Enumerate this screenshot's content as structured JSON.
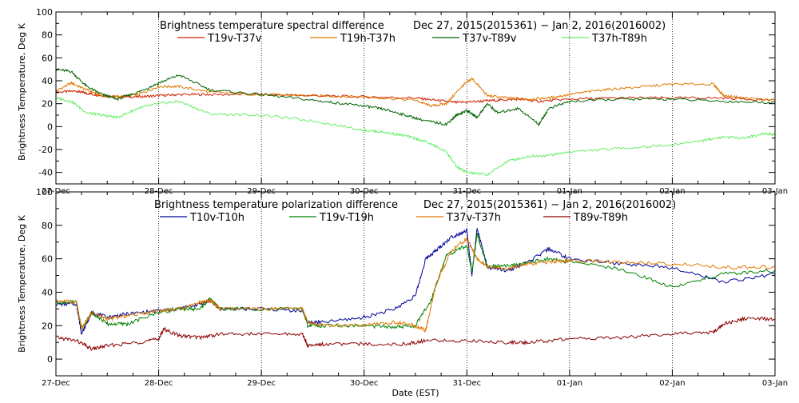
{
  "chart_data": [
    {
      "type": "line",
      "title": "Brightness temperature spectral difference",
      "date_range": "Dec 27, 2015(2015361) − Jan  2, 2016(2016002)",
      "ylabel": "Brightness Temperature, Deg K",
      "xlabel": "",
      "ylim": [
        -50,
        100
      ],
      "yticks": [
        -40,
        -20,
        0,
        20,
        40,
        60,
        80,
        100
      ],
      "xlim": [
        0,
        7
      ],
      "xtick_labels": [
        "27-Dec",
        "28-Dec",
        "29-Dec",
        "30-Dec",
        "31-Dec",
        "01-Jan",
        "02-Jan",
        "03-Jan"
      ],
      "grid": "dotted vertical lines at day boundaries",
      "legend_placement": "top",
      "series": [
        {
          "name": "T19v-T37v",
          "color": "#cc2200",
          "x": [
            0,
            0.2,
            0.3,
            0.45,
            0.6,
            0.8,
            1.0,
            1.2,
            1.5,
            2.0,
            2.5,
            3.0,
            3.5,
            3.7,
            3.9,
            4.1,
            4.3,
            4.5,
            4.7,
            5.0,
            5.5,
            6.0,
            6.5,
            7.0
          ],
          "y": [
            30,
            31,
            29,
            27,
            26,
            26,
            27,
            28,
            28,
            28,
            27,
            26,
            25,
            23,
            21,
            22,
            23,
            24,
            22,
            24,
            25,
            25,
            25,
            23
          ]
        },
        {
          "name": "T19h-T37h",
          "color": "#e07800",
          "x": [
            0,
            0.15,
            0.3,
            0.45,
            0.6,
            0.8,
            1.0,
            1.2,
            1.5,
            2.0,
            2.5,
            3.0,
            3.5,
            3.65,
            3.8,
            3.95,
            4.05,
            4.2,
            4.4,
            4.6,
            4.8,
            5.0,
            5.3,
            5.6,
            6.0,
            6.4,
            6.5,
            6.7,
            7.0
          ],
          "y": [
            31,
            38,
            32,
            27,
            26,
            28,
            35,
            35,
            30,
            28,
            27,
            26,
            23,
            18,
            20,
            35,
            42,
            27,
            25,
            24,
            25,
            28,
            32,
            34,
            37,
            37,
            27,
            25,
            23
          ]
        },
        {
          "name": "T37v-T89v",
          "color": "#006400",
          "x": [
            0,
            0.15,
            0.3,
            0.45,
            0.6,
            0.8,
            1.0,
            1.2,
            1.5,
            2.0,
            2.5,
            2.8,
            3.0,
            3.2,
            3.4,
            3.6,
            3.8,
            3.9,
            4.0,
            4.1,
            4.2,
            4.3,
            4.5,
            4.7,
            4.8,
            5.0,
            5.5,
            6.0,
            6.5,
            7.0
          ],
          "y": [
            50,
            48,
            35,
            28,
            24,
            30,
            38,
            45,
            32,
            28,
            23,
            20,
            18,
            15,
            10,
            5,
            2,
            10,
            14,
            8,
            20,
            12,
            16,
            2,
            16,
            22,
            24,
            24,
            22,
            21
          ]
        },
        {
          "name": "T37h-T89h",
          "color": "#66ee66",
          "x": [
            0,
            0.15,
            0.3,
            0.45,
            0.6,
            0.8,
            1.0,
            1.2,
            1.5,
            2.0,
            2.5,
            3.0,
            3.2,
            3.4,
            3.6,
            3.8,
            3.9,
            4.0,
            4.2,
            4.4,
            4.6,
            4.8,
            5.0,
            5.5,
            6.0,
            6.3,
            6.5,
            6.7,
            6.9,
            7.0
          ],
          "y": [
            25,
            22,
            12,
            10,
            8,
            16,
            20,
            22,
            11,
            10,
            5,
            -3,
            -5,
            -8,
            -13,
            -22,
            -35,
            -40,
            -42,
            -30,
            -26,
            -25,
            -22,
            -19,
            -16,
            -12,
            -9,
            -10,
            -6,
            -7
          ]
        }
      ]
    },
    {
      "type": "line",
      "title": "Brightness temperature polarization difference",
      "date_range": "Dec 27, 2015(2015361) − Jan  2, 2016(2016002)",
      "ylabel": "Brightness Temperature, Deg K",
      "xlabel": "Date (EST)",
      "ylim": [
        -10,
        100
      ],
      "yticks": [
        0,
        20,
        40,
        60,
        80,
        100
      ],
      "xlim": [
        0,
        7
      ],
      "xtick_labels": [
        "27-Dec",
        "28-Dec",
        "29-Dec",
        "30-Dec",
        "31-Dec",
        "01-Jan",
        "02-Jan",
        "03-Jan"
      ],
      "grid": "dotted vertical lines at day boundaries",
      "legend_placement": "top",
      "series": [
        {
          "name": "T10v-T10h",
          "color": "#000099",
          "x": [
            0,
            0.2,
            0.25,
            0.35,
            0.5,
            0.7,
            1.0,
            1.2,
            1.4,
            1.5,
            1.6,
            2.0,
            2.4,
            2.45,
            2.6,
            3.0,
            3.3,
            3.5,
            3.6,
            3.7,
            3.85,
            4.0,
            4.05,
            4.1,
            4.2,
            4.4,
            4.6,
            4.8,
            5.0,
            5.5,
            6.0,
            6.5,
            7.0
          ],
          "y": [
            33,
            33,
            15,
            28,
            25,
            27,
            29,
            30,
            33,
            35,
            30,
            30,
            29,
            22,
            22,
            25,
            30,
            38,
            60,
            65,
            73,
            77,
            50,
            78,
            55,
            53,
            58,
            66,
            60,
            57,
            55,
            46,
            51
          ]
        },
        {
          "name": "T19v-T19h",
          "color": "#008000",
          "x": [
            0,
            0.2,
            0.25,
            0.35,
            0.5,
            0.7,
            1.0,
            1.2,
            1.4,
            1.5,
            1.6,
            2.0,
            2.4,
            2.45,
            2.6,
            3.0,
            3.3,
            3.5,
            3.65,
            3.8,
            4.0,
            4.05,
            4.1,
            4.2,
            4.4,
            4.6,
            4.8,
            5.0,
            5.5,
            6.0,
            6.5,
            7.0
          ],
          "y": [
            34,
            34,
            18,
            28,
            21,
            21,
            28,
            30,
            30,
            36,
            30,
            30,
            30,
            20,
            20,
            20,
            19,
            20,
            35,
            62,
            68,
            52,
            75,
            55,
            56,
            58,
            60,
            58,
            54,
            43,
            51,
            53
          ]
        },
        {
          "name": "T37v-T37h",
          "color": "#e07800",
          "x": [
            0,
            0.2,
            0.25,
            0.35,
            0.5,
            0.7,
            1.0,
            1.2,
            1.4,
            1.5,
            1.6,
            2.0,
            2.4,
            2.45,
            2.6,
            3.0,
            3.3,
            3.5,
            3.6,
            3.7,
            3.85,
            4.0,
            4.1,
            4.2,
            4.4,
            4.6,
            4.8,
            5.0,
            5.5,
            6.0,
            6.5,
            7.0
          ],
          "y": [
            35,
            34,
            18,
            28,
            24,
            26,
            29,
            30,
            34,
            35,
            30,
            30,
            30,
            22,
            20,
            20,
            22,
            20,
            17,
            45,
            65,
            72,
            60,
            55,
            54,
            57,
            58,
            59,
            58,
            57,
            55,
            55
          ]
        },
        {
          "name": "T89v-T89h",
          "color": "#8b0000",
          "x": [
            0,
            0.2,
            0.35,
            0.5,
            0.8,
            1.0,
            1.05,
            1.2,
            1.4,
            1.6,
            2.0,
            2.4,
            2.45,
            2.6,
            3.0,
            3.4,
            3.6,
            4.0,
            4.4,
            4.6,
            5.0,
            5.5,
            6.0,
            6.4,
            6.5,
            6.7,
            7.0
          ],
          "y": [
            13,
            11,
            6,
            8,
            10,
            12,
            18,
            14,
            13,
            15,
            15,
            15,
            8,
            9,
            9,
            9,
            11,
            11,
            10,
            10,
            12,
            13,
            15,
            16,
            21,
            24,
            24
          ]
        }
      ]
    }
  ]
}
